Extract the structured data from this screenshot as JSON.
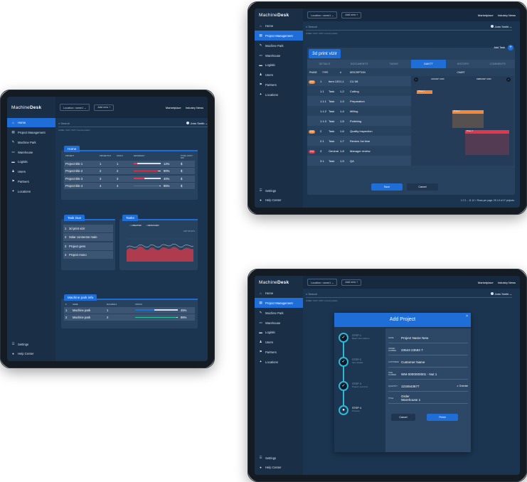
{
  "app": {
    "brand_light": "Machine",
    "brand_bold": "Desk",
    "location": "Location: name1",
    "add_new": "Add new",
    "marketplace": "Marketplace",
    "industry_news": "Industry News",
    "user": "John Smith",
    "search_placeholder": "Search",
    "breadcrumb": "HOME / UNIT / UNIT / Current position"
  },
  "sidebar": {
    "items": [
      {
        "label": "Home",
        "icon": "home-icon"
      },
      {
        "label": "Project Management",
        "icon": "document-icon"
      },
      {
        "label": "Machine Park",
        "icon": "wrench-icon"
      },
      {
        "label": "Warehouse",
        "icon": "warehouse-icon"
      },
      {
        "label": "Logistic",
        "icon": "truck-icon"
      },
      {
        "label": "Users",
        "icon": "user-icon"
      },
      {
        "label": "Partners",
        "icon": "partners-icon"
      },
      {
        "label": "Locations",
        "icon": "location-icon"
      }
    ],
    "settings": "Settings",
    "help": "Help Center"
  },
  "dashboard": {
    "home_title": "Home",
    "home_cols": [
      "PROJECT",
      "PROJECTS #",
      "TASK #",
      "EFFICIENCY",
      "TOTAL COST / DAY"
    ],
    "home_rows": [
      {
        "name": "Project title 1",
        "p": "1",
        "t": "1",
        "pct": "12%",
        "v": 12,
        "cost": "$"
      },
      {
        "name": "Project title 2",
        "p": "2",
        "t": "2",
        "pct": "90%",
        "v": 90,
        "cost": "$"
      },
      {
        "name": "Project title 3",
        "p": "3",
        "t": "3",
        "pct": "40%",
        "v": 40,
        "cost": "$"
      },
      {
        "name": "Project title 4",
        "p": "4",
        "t": "4",
        "pct": "95%",
        "v": 95,
        "cost": "$"
      }
    ],
    "task_due_title": "Task Due",
    "task_due": [
      {
        "n": "1",
        "label": "3d print vizir"
      },
      {
        "n": "2",
        "label": "Solar connector male"
      },
      {
        "n": "3",
        "label": "Project gens"
      },
      {
        "n": "4",
        "label": "Project mono"
      }
    ],
    "tasks_title": "Tasks",
    "legend_created": "CREATED",
    "legend_resolved": "RESOLVED",
    "chart_note": "LAST 30 DAYS",
    "machine_title": "Machine park info",
    "machine_cols": [
      "#",
      "NAME",
      "MACHINE #",
      "STATUS"
    ],
    "machine_rows": [
      {
        "n": "1",
        "name": "Machine park",
        "m": "1",
        "pct": "45%",
        "v": 45
      },
      {
        "n": "2",
        "name": "Machine park",
        "m": "2",
        "pct": "96%",
        "v": 96
      }
    ]
  },
  "gantt": {
    "title": "3d print vizir",
    "add_task": "Add Task",
    "tabs": [
      "DETAILS",
      "DOCUMENTS",
      "TASKS",
      "GANTT",
      "HISTORY",
      "COMMENTS"
    ],
    "cols": [
      "PHASE",
      "TYPE",
      "#",
      "DESCRIPTION",
      "CHART"
    ],
    "months": [
      "JANUARY 2020",
      "FEBRUARY 2020"
    ],
    "rows": [
      {
        "phase": "PH1",
        "n": "1",
        "type": "Item 133",
        "id": "1-1",
        "desc": "CU 08"
      },
      {
        "phase": "",
        "n": "1.1",
        "type": "Task",
        "id": "1-2",
        "desc": "Cutting"
      },
      {
        "phase": "",
        "n": "1.1.1",
        "type": "Task",
        "id": "1-3",
        "desc": "Preparation"
      },
      {
        "phase": "",
        "n": "1.1.2",
        "type": "Task",
        "id": "1-4",
        "desc": "Milling"
      },
      {
        "phase": "",
        "n": "1.1.3",
        "type": "Task",
        "id": "1-5",
        "desc": "Polishing"
      },
      {
        "phase": "PH2",
        "n": "2",
        "type": "Task",
        "id": "1-6",
        "desc": "Quality inspection"
      },
      {
        "phase": "",
        "n": "2.1",
        "type": "Task",
        "id": "1-7",
        "desc": "Review 1st time"
      },
      {
        "phase": "PH3",
        "n": "3",
        "type": "General",
        "id": "1-8",
        "desc": "Manager review"
      },
      {
        "phase": "",
        "n": "3.1",
        "type": "Task",
        "id": "1-9",
        "desc": "QA"
      }
    ],
    "phase_bars": [
      "Phase 1",
      "Phase 2",
      "Phase 3"
    ],
    "save": "Save",
    "cancel": "Cancel",
    "pagination": "1  2  3  ...  11  12  >   Rows per page: 25  1-5 of 17 projects"
  },
  "modal": {
    "title": "Add Project",
    "steps": [
      {
        "label": "STEP 1",
        "sub": "Basic informations"
      },
      {
        "label": "STEP 2",
        "sub": "Item details"
      },
      {
        "label": "STEP 3",
        "sub": "Project overview"
      },
      {
        "label": "STEP 4",
        "sub": "Preview"
      }
    ],
    "fields": [
      {
        "label": "NAME",
        "value": "Project Name New"
      },
      {
        "label": "ORDER NUMBER",
        "value": "23543 23583 7"
      },
      {
        "label": "CUSTOMER",
        "value": "Customer Name"
      },
      {
        "label": "ITEM NUMBER",
        "value": "WM-0000000001 - Nut 1"
      },
      {
        "label": "QUANTITY",
        "value": "1234543677"
      },
      {
        "label": "TITLE",
        "value": "Order Warehouse 1"
      }
    ],
    "override": "Override",
    "cancel": "Cancel",
    "finish": "Finish"
  }
}
